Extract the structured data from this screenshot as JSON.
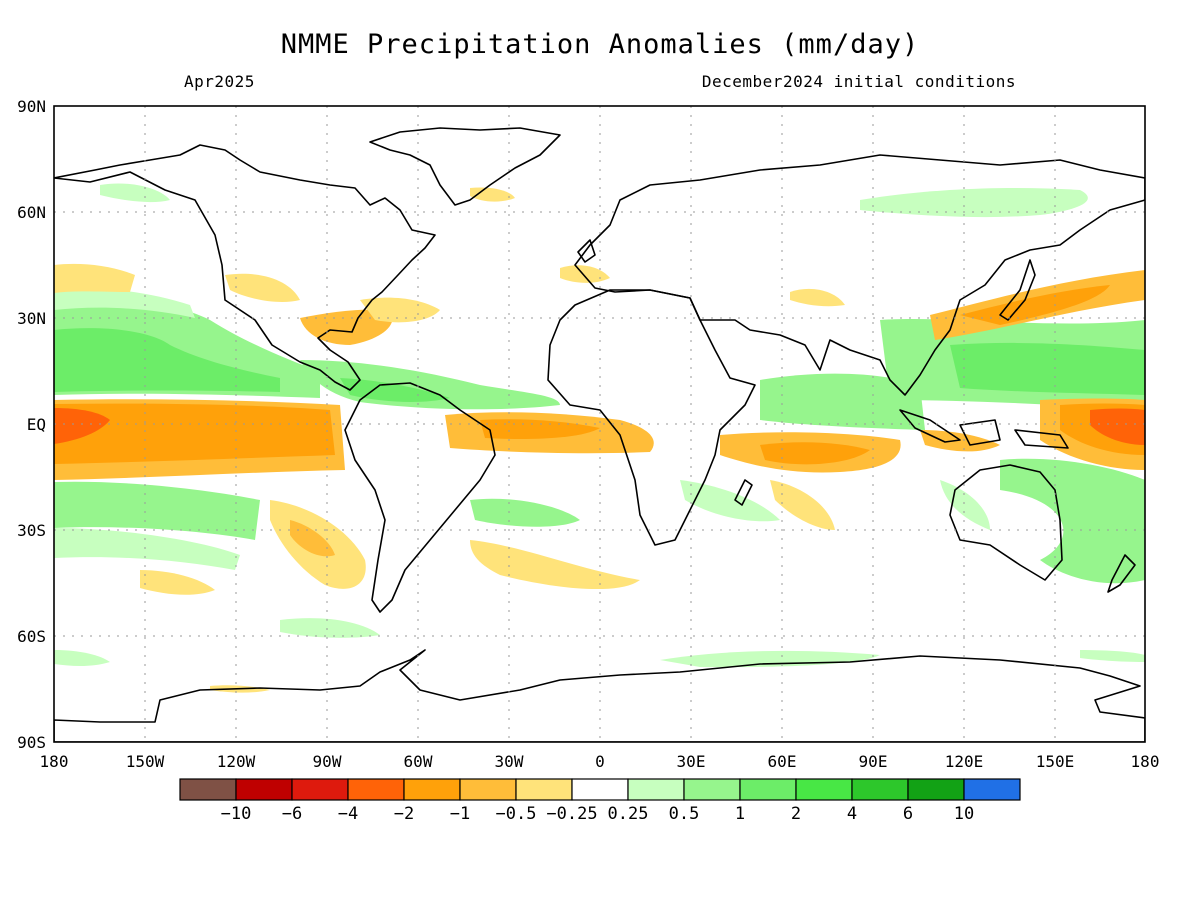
{
  "header": {
    "title": "NMME Precipitation Anomalies (mm/day)",
    "valid_month": "Apr2025",
    "init_conditions": "December2024 initial conditions"
  },
  "map": {
    "lat_labels": [
      "90N",
      "60N",
      "30N",
      "EQ",
      "30S",
      "60S",
      "90S"
    ],
    "lon_labels": [
      "180",
      "150W",
      "120W",
      "90W",
      "60W",
      "30W",
      "0",
      "30E",
      "60E",
      "90E",
      "120E",
      "150E",
      "180"
    ]
  },
  "colorbar": {
    "colors": [
      "#7f5145",
      "#bf0000",
      "#de1a0d",
      "#ff6308",
      "#ffa10a",
      "#ffbd39",
      "#ffe37a",
      "#ffffff",
      "#c7ffbf",
      "#96f58d",
      "#6ced68",
      "#48e745",
      "#2dc72b",
      "#12a215",
      "#2070e6"
    ],
    "labels": [
      "−10",
      "−6",
      "−4",
      "−2",
      "−1",
      "−0.5",
      "−0.25",
      "0.25",
      "0.5",
      "1",
      "2",
      "4",
      "6",
      "10"
    ]
  }
}
